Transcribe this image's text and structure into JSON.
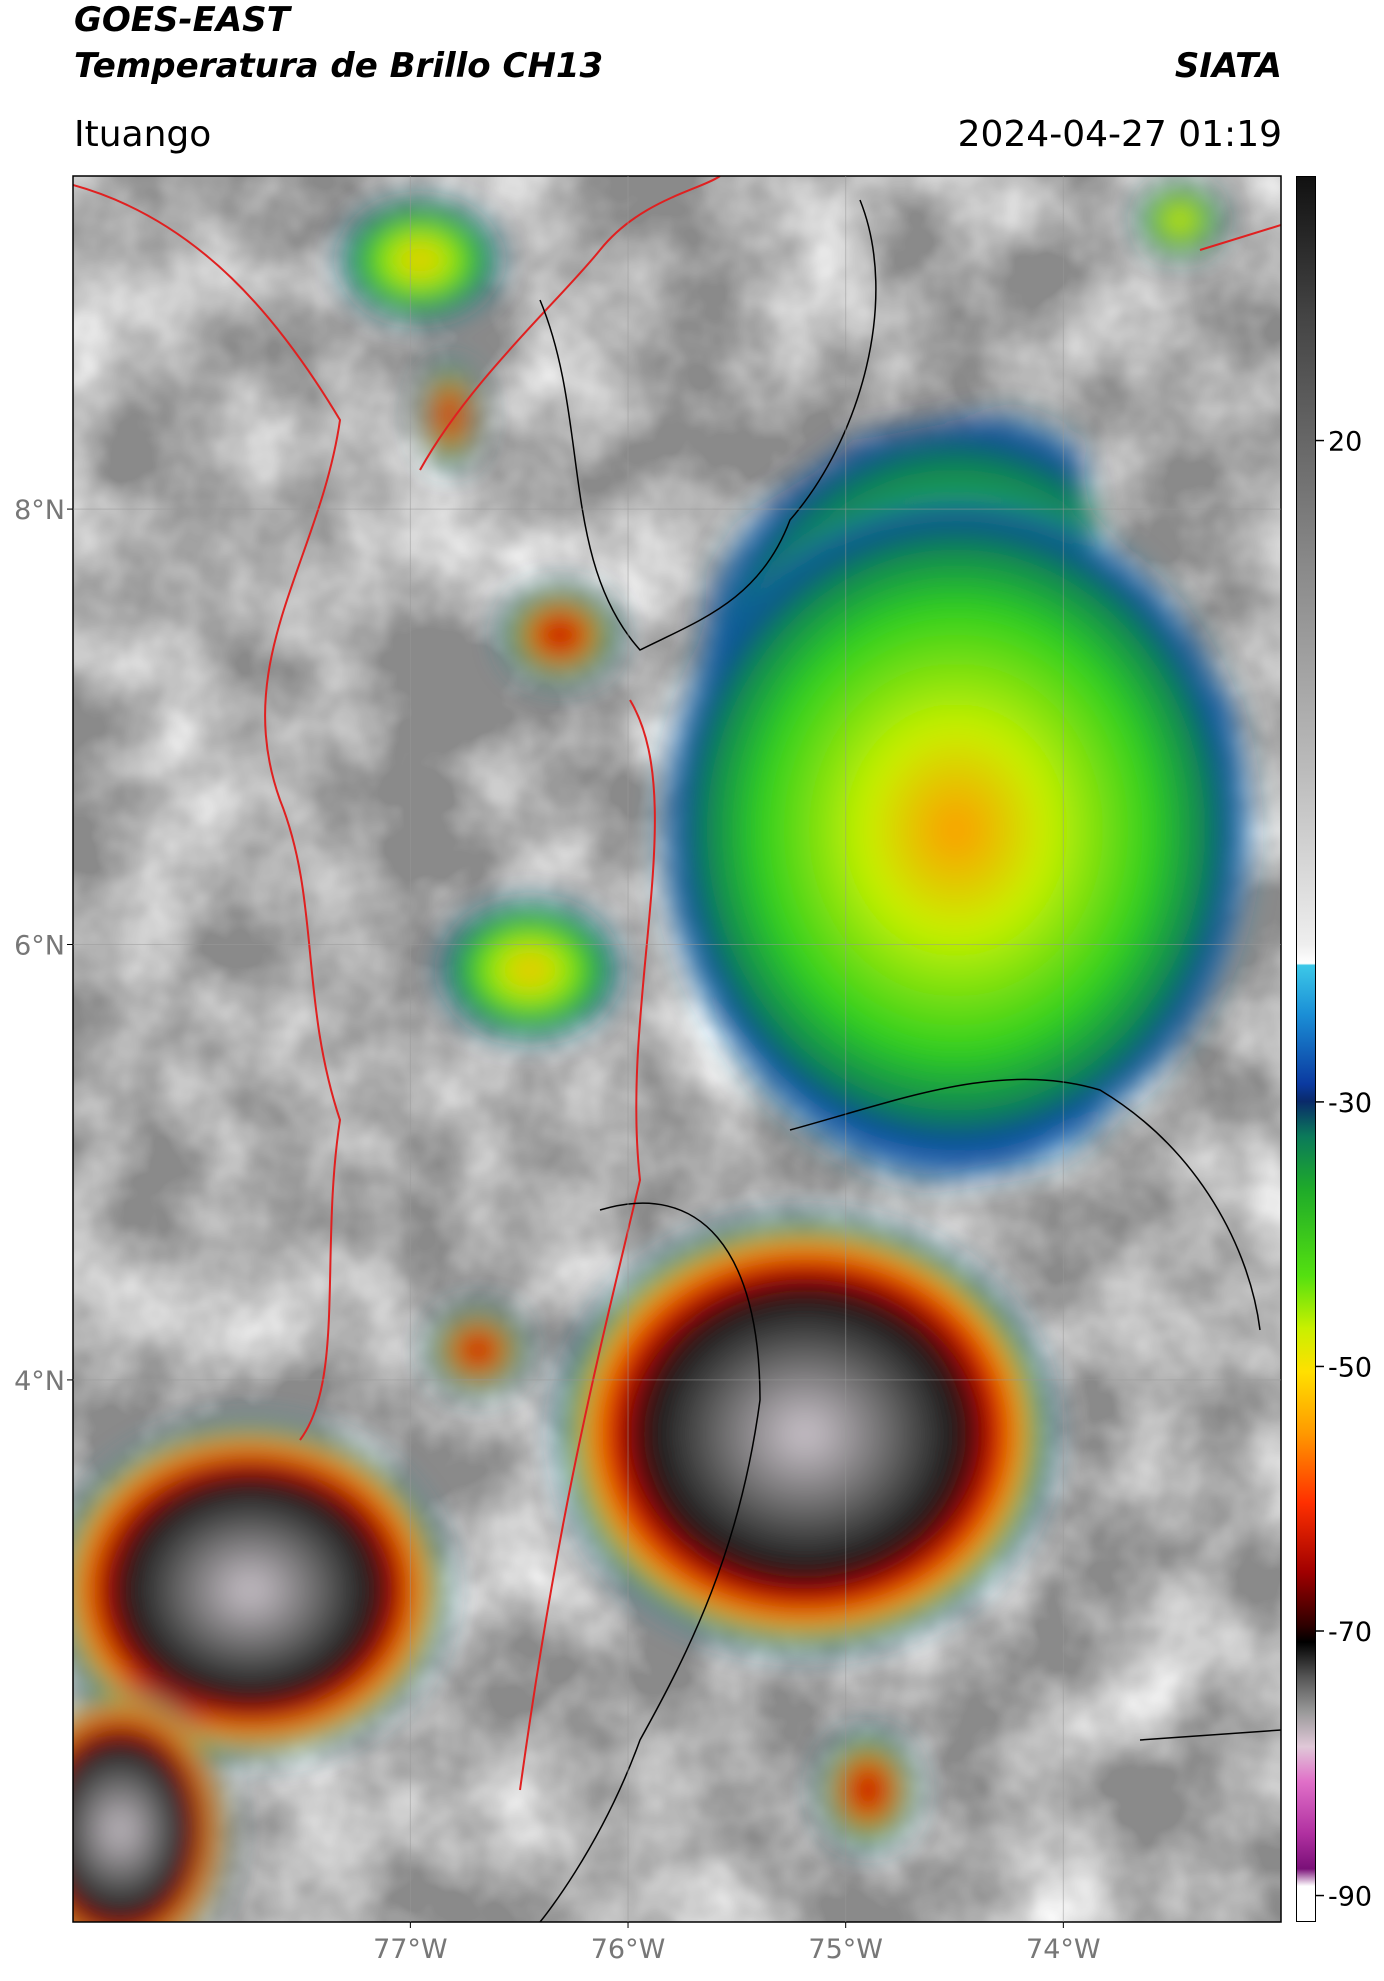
{
  "map": {
    "title": "GOES-EAST",
    "subtitle": "Temperatura de Brillo CH13",
    "source": "SIATA",
    "location": "Ituango",
    "datetime": "2024-04-27 01:19",
    "lonlim": [
      -78.55,
      -73.0
    ],
    "latlim": [
      1.51,
      9.53
    ],
    "lon_ticks": [
      {
        "value": -77,
        "label": "77°W"
      },
      {
        "value": -76,
        "label": "76°W"
      },
      {
        "value": -75,
        "label": "75°W"
      },
      {
        "value": -74,
        "label": "74°W"
      }
    ],
    "lat_ticks": [
      {
        "value": 8,
        "label": "8°N"
      },
      {
        "value": 6,
        "label": "6°N"
      },
      {
        "value": 4,
        "label": "4°N"
      }
    ],
    "colorbar": {
      "lim": [
        -92,
        40
      ],
      "ticks": [
        20,
        -30,
        -50,
        -70,
        -90
      ]
    }
  }
}
